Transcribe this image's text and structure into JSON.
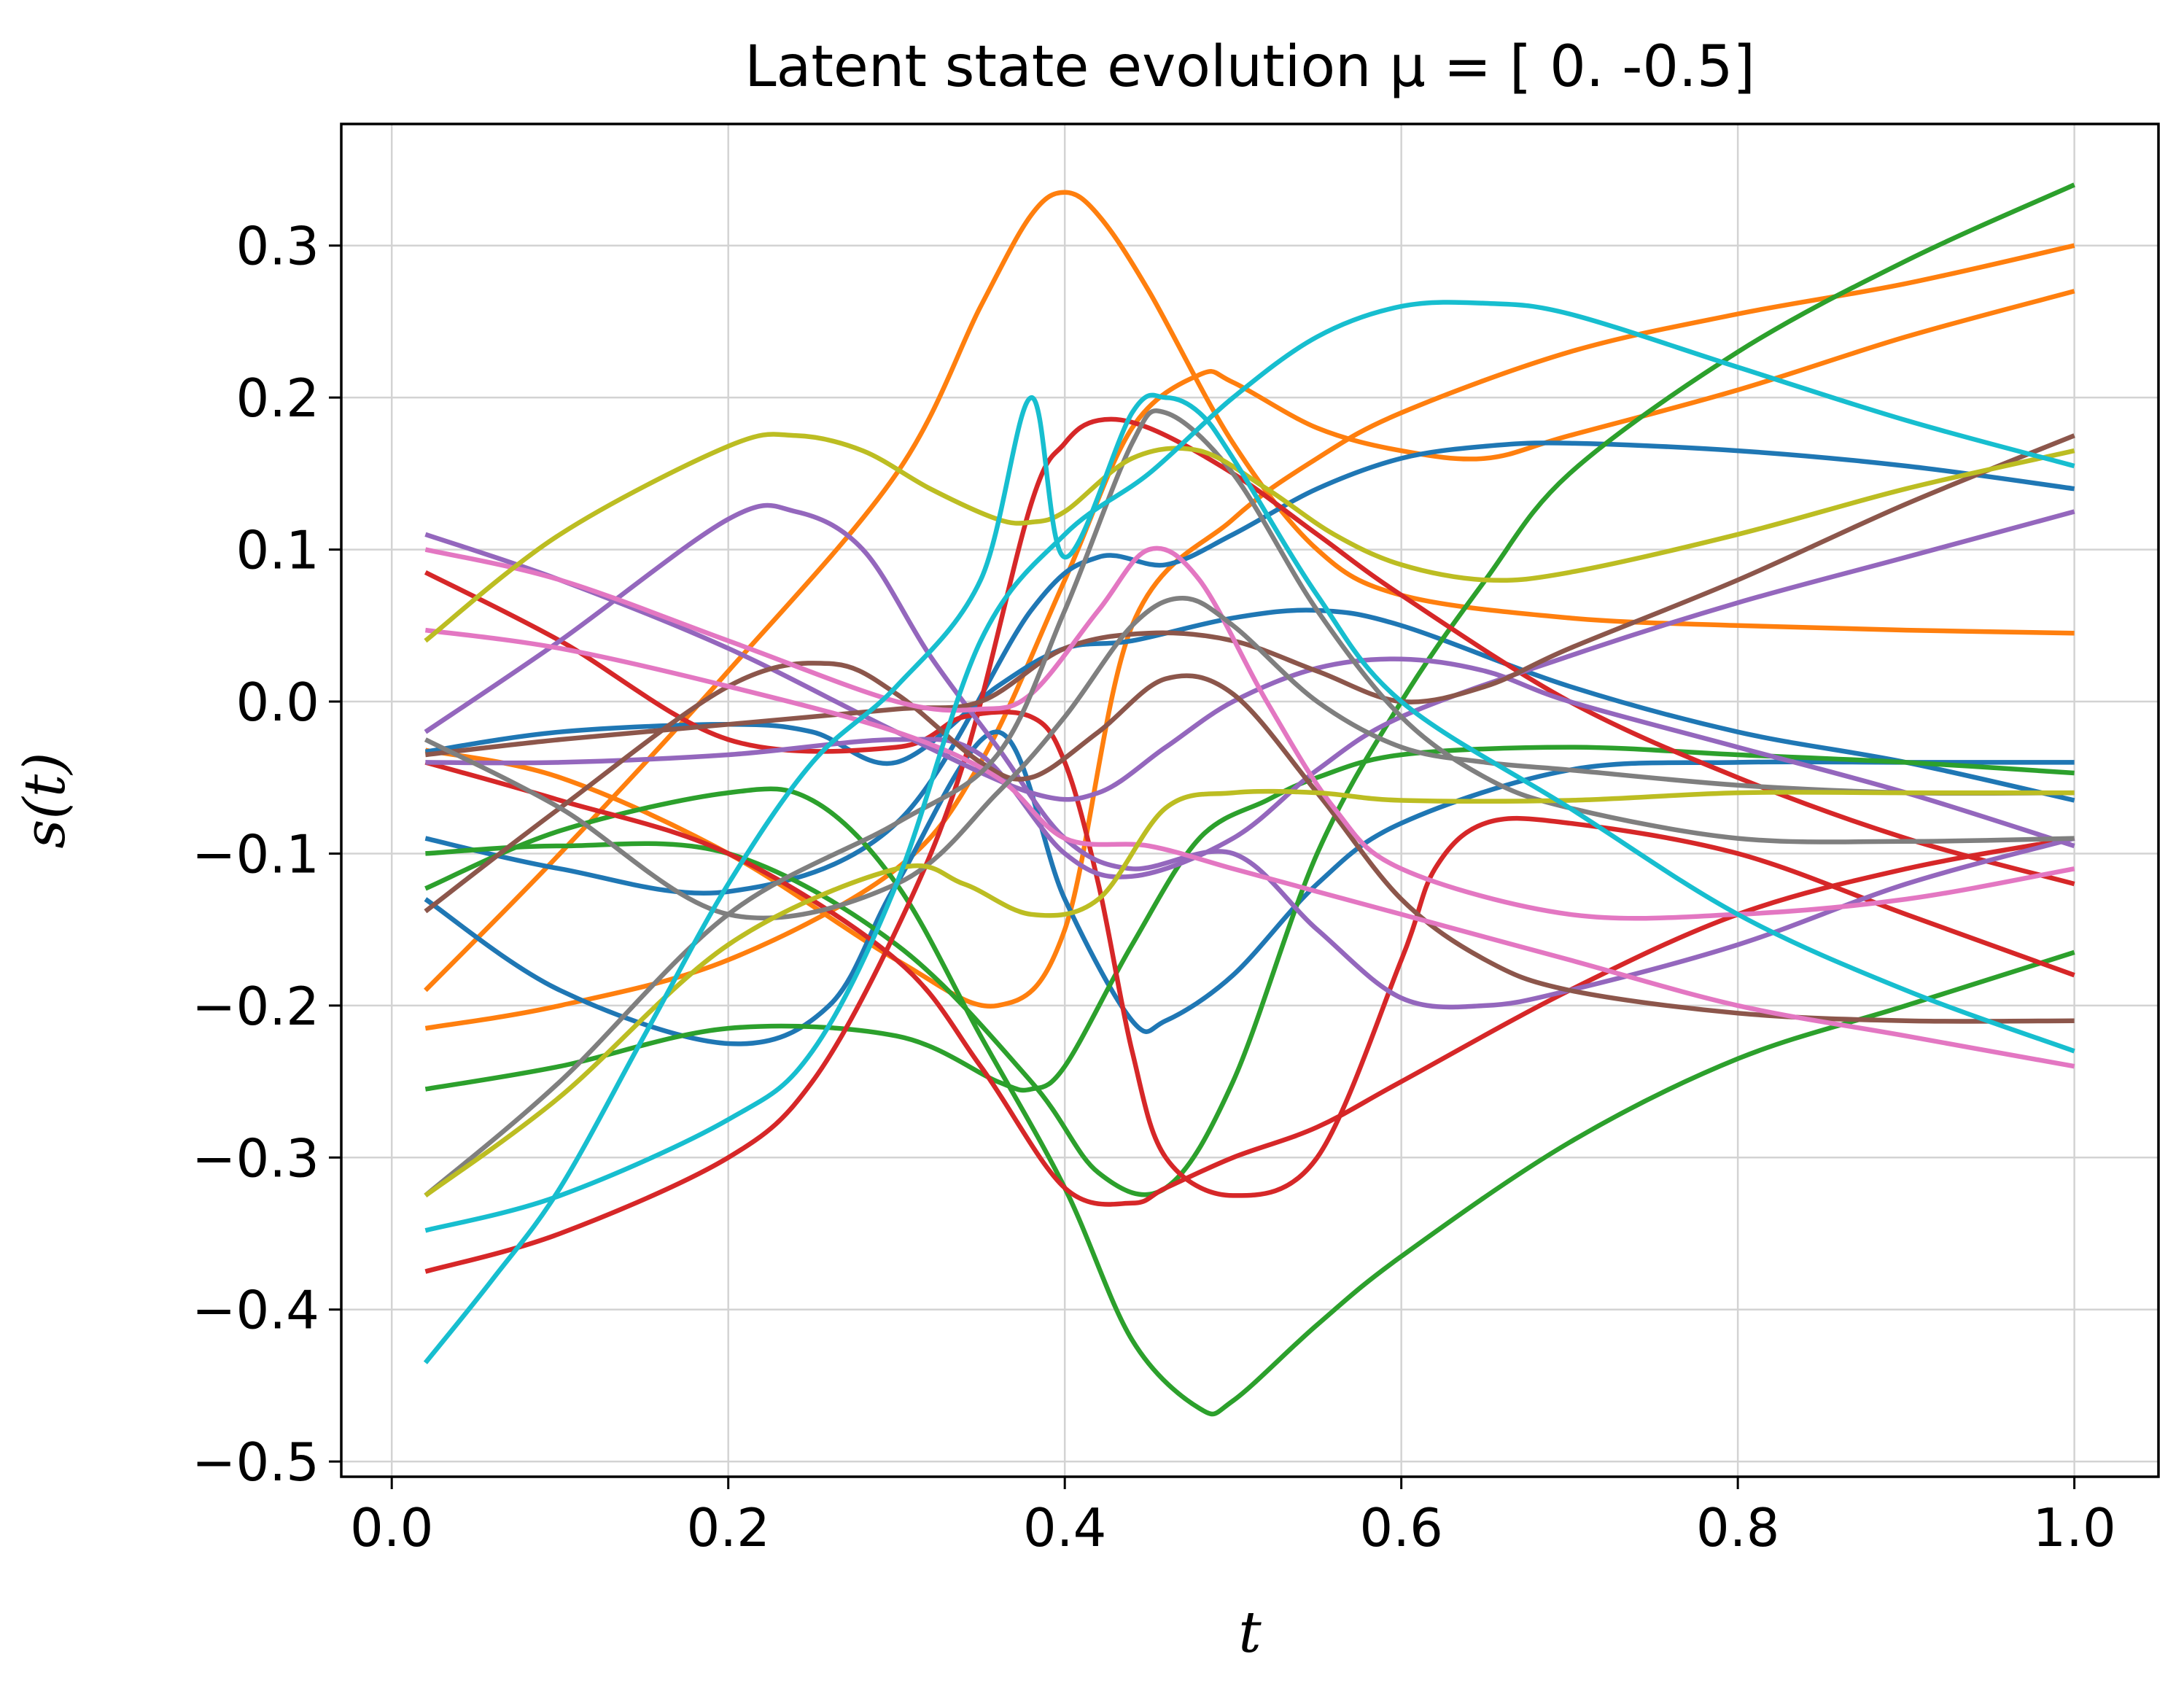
{
  "chart_data": {
    "type": "line",
    "title": "Latent state evolution μ = [ 0.  -0.5]",
    "xlabel": "t",
    "ylabel": "s(t)",
    "xlim": [
      -0.03,
      1.05
    ],
    "ylim": [
      -0.51,
      0.38
    ],
    "grid": true,
    "legend": "none",
    "xticks": [
      0.0,
      0.2,
      0.4,
      0.6,
      0.8,
      1.0
    ],
    "xtick_labels": [
      "0.0",
      "0.2",
      "0.4",
      "0.6",
      "0.8",
      "1.0"
    ],
    "yticks": [
      0.3,
      0.2,
      0.1,
      0.0,
      -0.1,
      -0.2,
      -0.3,
      -0.4,
      -0.5
    ],
    "ytick_labels": [
      "0.3",
      "0.2",
      "0.1",
      "0.0",
      "−0.1",
      "−0.2",
      "−0.3",
      "−0.4",
      "−0.5"
    ],
    "series": [
      {
        "color": "#ff7f0e",
        "x": [
          0.02,
          0.1,
          0.2,
          0.3,
          0.36,
          0.4,
          0.44,
          0.5,
          0.55,
          0.6,
          0.7,
          0.8,
          0.9,
          1.0
        ],
        "y": [
          -0.032,
          -0.05,
          -0.1,
          -0.17,
          -0.2,
          -0.15,
          0.05,
          0.12,
          0.16,
          0.19,
          0.23,
          0.255,
          0.275,
          0.3
        ]
      },
      {
        "color": "#ff7f0e",
        "x": [
          0.02,
          0.1,
          0.2,
          0.3,
          0.35,
          0.38,
          0.4,
          0.42,
          0.45,
          0.5,
          0.55,
          0.6,
          0.7,
          0.8,
          0.9,
          1.0
        ],
        "y": [
          -0.19,
          -0.1,
          0.02,
          0.15,
          0.26,
          0.32,
          0.335,
          0.32,
          0.27,
          0.17,
          0.1,
          0.07,
          0.055,
          0.05,
          0.047,
          0.045
        ]
      },
      {
        "color": "#ff7f0e",
        "x": [
          0.02,
          0.1,
          0.2,
          0.3,
          0.35,
          0.4,
          0.44,
          0.48,
          0.5,
          0.55,
          0.6,
          0.65,
          0.7,
          0.8,
          0.9,
          1.0
        ],
        "y": [
          -0.215,
          -0.2,
          -0.17,
          -0.11,
          -0.04,
          0.08,
          0.18,
          0.215,
          0.21,
          0.18,
          0.165,
          0.16,
          0.175,
          0.205,
          0.24,
          0.27
        ]
      },
      {
        "color": "#1f77b4",
        "x": [
          0.02,
          0.1,
          0.2,
          0.3,
          0.38,
          0.42,
          0.46,
          0.5,
          0.55,
          0.6,
          0.65,
          0.7,
          0.8,
          0.9,
          1.0
        ],
        "y": [
          -0.09,
          -0.11,
          -0.125,
          -0.08,
          0.06,
          0.095,
          0.09,
          0.11,
          0.14,
          0.16,
          0.168,
          0.17,
          0.165,
          0.155,
          0.14
        ]
      },
      {
        "color": "#1f77b4",
        "x": [
          0.02,
          0.1,
          0.2,
          0.25,
          0.3,
          0.36,
          0.4,
          0.44,
          0.5,
          0.55,
          0.6,
          0.7,
          0.8,
          0.9,
          1.0
        ],
        "y": [
          -0.033,
          -0.02,
          -0.015,
          -0.02,
          -0.04,
          0.01,
          0.035,
          0.04,
          0.055,
          0.06,
          0.05,
          0.01,
          -0.02,
          -0.04,
          -0.065
        ]
      },
      {
        "color": "#1f77b4",
        "x": [
          0.02,
          0.1,
          0.2,
          0.26,
          0.3,
          0.36,
          0.4,
          0.44,
          0.46,
          0.5,
          0.55,
          0.6,
          0.7,
          0.8,
          0.9,
          1.0
        ],
        "y": [
          -0.13,
          -0.19,
          -0.225,
          -0.2,
          -0.12,
          -0.02,
          -0.13,
          -0.21,
          -0.21,
          -0.18,
          -0.12,
          -0.08,
          -0.045,
          -0.04,
          -0.04,
          -0.04
        ]
      },
      {
        "color": "#2ca02c",
        "x": [
          0.02,
          0.1,
          0.2,
          0.3,
          0.38,
          0.42,
          0.46,
          0.5,
          0.55,
          0.6,
          0.65,
          0.7,
          0.8,
          0.9,
          1.0
        ],
        "y": [
          -0.1,
          -0.095,
          -0.1,
          -0.16,
          -0.25,
          -0.31,
          -0.32,
          -0.25,
          -0.1,
          0.0,
          0.08,
          0.15,
          0.23,
          0.29,
          0.34
        ]
      },
      {
        "color": "#2ca02c",
        "x": [
          0.02,
          0.1,
          0.2,
          0.25,
          0.3,
          0.35,
          0.4,
          0.44,
          0.48,
          0.5,
          0.55,
          0.6,
          0.7,
          0.8,
          0.9,
          1.0
        ],
        "y": [
          -0.123,
          -0.085,
          -0.06,
          -0.065,
          -0.12,
          -0.22,
          -0.32,
          -0.42,
          -0.465,
          -0.46,
          -0.41,
          -0.365,
          -0.29,
          -0.235,
          -0.2,
          -0.165
        ]
      },
      {
        "color": "#2ca02c",
        "x": [
          0.02,
          0.1,
          0.2,
          0.3,
          0.36,
          0.38,
          0.4,
          0.44,
          0.48,
          0.52,
          0.55,
          0.6,
          0.7,
          0.8,
          0.9,
          1.0
        ],
        "y": [
          -0.255,
          -0.24,
          -0.215,
          -0.22,
          -0.25,
          -0.255,
          -0.24,
          -0.16,
          -0.09,
          -0.065,
          -0.05,
          -0.035,
          -0.03,
          -0.035,
          -0.04,
          -0.047
        ]
      },
      {
        "color": "#d62728",
        "x": [
          0.02,
          0.1,
          0.2,
          0.25,
          0.3,
          0.34,
          0.38,
          0.4,
          0.42,
          0.45,
          0.5,
          0.55,
          0.6,
          0.7,
          0.8,
          0.9,
          1.0
        ],
        "y": [
          -0.375,
          -0.35,
          -0.3,
          -0.25,
          -0.15,
          -0.04,
          0.13,
          0.17,
          0.185,
          0.18,
          0.15,
          0.11,
          0.07,
          0.0,
          -0.05,
          -0.09,
          -0.12
        ]
      },
      {
        "color": "#d62728",
        "x": [
          0.02,
          0.1,
          0.2,
          0.3,
          0.34,
          0.38,
          0.4,
          0.42,
          0.44,
          0.46,
          0.5,
          0.55,
          0.6,
          0.62,
          0.65,
          0.7,
          0.8,
          0.9,
          1.0
        ],
        "y": [
          0.085,
          0.04,
          -0.025,
          -0.03,
          -0.01,
          -0.01,
          -0.04,
          -0.12,
          -0.23,
          -0.3,
          -0.325,
          -0.3,
          -0.17,
          -0.11,
          -0.08,
          -0.08,
          -0.1,
          -0.14,
          -0.18
        ]
      },
      {
        "color": "#d62728",
        "x": [
          0.02,
          0.1,
          0.2,
          0.3,
          0.35,
          0.4,
          0.44,
          0.46,
          0.5,
          0.55,
          0.6,
          0.7,
          0.8,
          0.9,
          1.0
        ],
        "y": [
          -0.04,
          -0.065,
          -0.1,
          -0.17,
          -0.24,
          -0.32,
          -0.33,
          -0.32,
          -0.3,
          -0.28,
          -0.25,
          -0.19,
          -0.14,
          -0.11,
          -0.09
        ]
      },
      {
        "color": "#9467bd",
        "x": [
          0.02,
          0.1,
          0.2,
          0.3,
          0.38,
          0.42,
          0.46,
          0.5,
          0.55,
          0.6,
          0.65,
          0.7,
          0.8,
          0.9,
          1.0
        ],
        "y": [
          0.11,
          0.08,
          0.035,
          -0.02,
          -0.06,
          -0.06,
          -0.03,
          0.0,
          0.022,
          0.028,
          0.02,
          0.0,
          -0.03,
          -0.06,
          -0.095
        ]
      },
      {
        "color": "#9467bd",
        "x": [
          0.02,
          0.1,
          0.2,
          0.24,
          0.28,
          0.32,
          0.36,
          0.4,
          0.44,
          0.5,
          0.55,
          0.6,
          0.65,
          0.7,
          0.8,
          0.9,
          1.0
        ],
        "y": [
          -0.02,
          0.04,
          0.12,
          0.125,
          0.1,
          0.03,
          -0.03,
          -0.09,
          -0.11,
          -0.1,
          -0.15,
          -0.195,
          -0.2,
          -0.19,
          -0.16,
          -0.12,
          -0.09
        ]
      },
      {
        "color": "#9467bd",
        "x": [
          0.02,
          0.1,
          0.2,
          0.3,
          0.35,
          0.4,
          0.44,
          0.5,
          0.55,
          0.6,
          0.7,
          0.8,
          0.9,
          1.0
        ],
        "y": [
          -0.04,
          -0.04,
          -0.035,
          -0.025,
          -0.035,
          -0.1,
          -0.115,
          -0.09,
          -0.045,
          -0.01,
          0.03,
          0.065,
          0.095,
          0.125
        ]
      },
      {
        "color": "#8c564b",
        "x": [
          0.02,
          0.1,
          0.2,
          0.26,
          0.3,
          0.35,
          0.38,
          0.42,
          0.46,
          0.5,
          0.55,
          0.6,
          0.65,
          0.7,
          0.8,
          0.9,
          1.0
        ],
        "y": [
          -0.138,
          -0.07,
          0.01,
          0.025,
          0.005,
          -0.04,
          -0.05,
          -0.02,
          0.015,
          0.005,
          -0.06,
          -0.13,
          -0.17,
          -0.19,
          -0.205,
          -0.21,
          -0.21
        ]
      },
      {
        "color": "#8c564b",
        "x": [
          0.02,
          0.1,
          0.2,
          0.3,
          0.35,
          0.4,
          0.45,
          0.5,
          0.55,
          0.6,
          0.65,
          0.7,
          0.8,
          0.9,
          1.0
        ],
        "y": [
          -0.035,
          -0.025,
          -0.015,
          -0.005,
          0.0,
          0.035,
          0.045,
          0.04,
          0.02,
          0.0,
          0.01,
          0.035,
          0.08,
          0.13,
          0.175
        ]
      },
      {
        "color": "#e377c2",
        "x": [
          0.02,
          0.1,
          0.2,
          0.3,
          0.35,
          0.38,
          0.42,
          0.45,
          0.48,
          0.52,
          0.56,
          0.6,
          0.7,
          0.8,
          0.9,
          1.0
        ],
        "y": [
          0.1,
          0.08,
          0.04,
          0.0,
          -0.005,
          0.005,
          0.06,
          0.1,
          0.08,
          0.0,
          -0.07,
          -0.11,
          -0.14,
          -0.14,
          -0.13,
          -0.11
        ]
      },
      {
        "color": "#e377c2",
        "x": [
          0.02,
          0.1,
          0.2,
          0.3,
          0.36,
          0.4,
          0.45,
          0.5,
          0.55,
          0.6,
          0.7,
          0.8,
          0.9,
          1.0
        ],
        "y": [
          0.047,
          0.035,
          0.01,
          -0.02,
          -0.05,
          -0.09,
          -0.095,
          -0.11,
          -0.125,
          -0.14,
          -0.17,
          -0.2,
          -0.22,
          -0.24
        ]
      },
      {
        "color": "#7f7f7f",
        "x": [
          0.02,
          0.1,
          0.2,
          0.3,
          0.36,
          0.4,
          0.44,
          0.47,
          0.5,
          0.55,
          0.6,
          0.65,
          0.7,
          0.8,
          0.9,
          1.0
        ],
        "y": [
          -0.025,
          -0.07,
          -0.14,
          -0.12,
          -0.06,
          -0.01,
          0.05,
          0.068,
          0.05,
          0.0,
          -0.03,
          -0.04,
          -0.045,
          -0.055,
          -0.06,
          -0.06
        ]
      },
      {
        "color": "#7f7f7f",
        "x": [
          0.02,
          0.1,
          0.2,
          0.3,
          0.36,
          0.4,
          0.44,
          0.46,
          0.5,
          0.55,
          0.6,
          0.65,
          0.7,
          0.8,
          0.9,
          1.0
        ],
        "y": [
          -0.325,
          -0.25,
          -0.14,
          -0.08,
          -0.035,
          0.06,
          0.17,
          0.19,
          0.15,
          0.06,
          -0.01,
          -0.05,
          -0.07,
          -0.09,
          -0.092,
          -0.09
        ]
      },
      {
        "color": "#bcbd22",
        "x": [
          0.02,
          0.1,
          0.2,
          0.24,
          0.28,
          0.32,
          0.36,
          0.38,
          0.4,
          0.44,
          0.48,
          0.52,
          0.56,
          0.6,
          0.65,
          0.7,
          0.8,
          0.9,
          1.0
        ],
        "y": [
          0.04,
          0.11,
          0.168,
          0.175,
          0.165,
          0.14,
          0.12,
          0.118,
          0.125,
          0.16,
          0.165,
          0.14,
          0.11,
          0.09,
          0.08,
          0.085,
          0.11,
          0.14,
          0.165
        ]
      },
      {
        "color": "#bcbd22",
        "x": [
          0.02,
          0.1,
          0.2,
          0.3,
          0.34,
          0.38,
          0.42,
          0.46,
          0.5,
          0.55,
          0.6,
          0.7,
          0.8,
          0.9,
          1.0
        ],
        "y": [
          -0.325,
          -0.26,
          -0.16,
          -0.11,
          -0.12,
          -0.14,
          -0.13,
          -0.07,
          -0.06,
          -0.06,
          -0.065,
          -0.065,
          -0.06,
          -0.06,
          -0.06
        ]
      },
      {
        "color": "#17becf",
        "x": [
          0.02,
          0.06,
          0.1,
          0.15,
          0.2,
          0.25,
          0.3,
          0.35,
          0.38,
          0.4,
          0.44,
          0.46,
          0.48,
          0.5,
          0.55,
          0.6,
          0.7,
          0.8,
          0.9,
          1.0
        ],
        "y": [
          -0.435,
          -0.38,
          -0.32,
          -0.22,
          -0.12,
          -0.04,
          0.01,
          0.08,
          0.2,
          0.095,
          0.19,
          0.2,
          0.19,
          0.16,
          0.07,
          0.0,
          -0.07,
          -0.14,
          -0.19,
          -0.23
        ]
      },
      {
        "color": "#17becf",
        "x": [
          0.02,
          0.1,
          0.2,
          0.25,
          0.3,
          0.35,
          0.4,
          0.45,
          0.5,
          0.55,
          0.6,
          0.65,
          0.7,
          0.8,
          0.9,
          1.0
        ],
        "y": [
          -0.348,
          -0.325,
          -0.275,
          -0.23,
          -0.12,
          0.04,
          0.11,
          0.15,
          0.2,
          0.24,
          0.26,
          0.262,
          0.255,
          0.22,
          0.185,
          0.155
        ]
      }
    ]
  }
}
